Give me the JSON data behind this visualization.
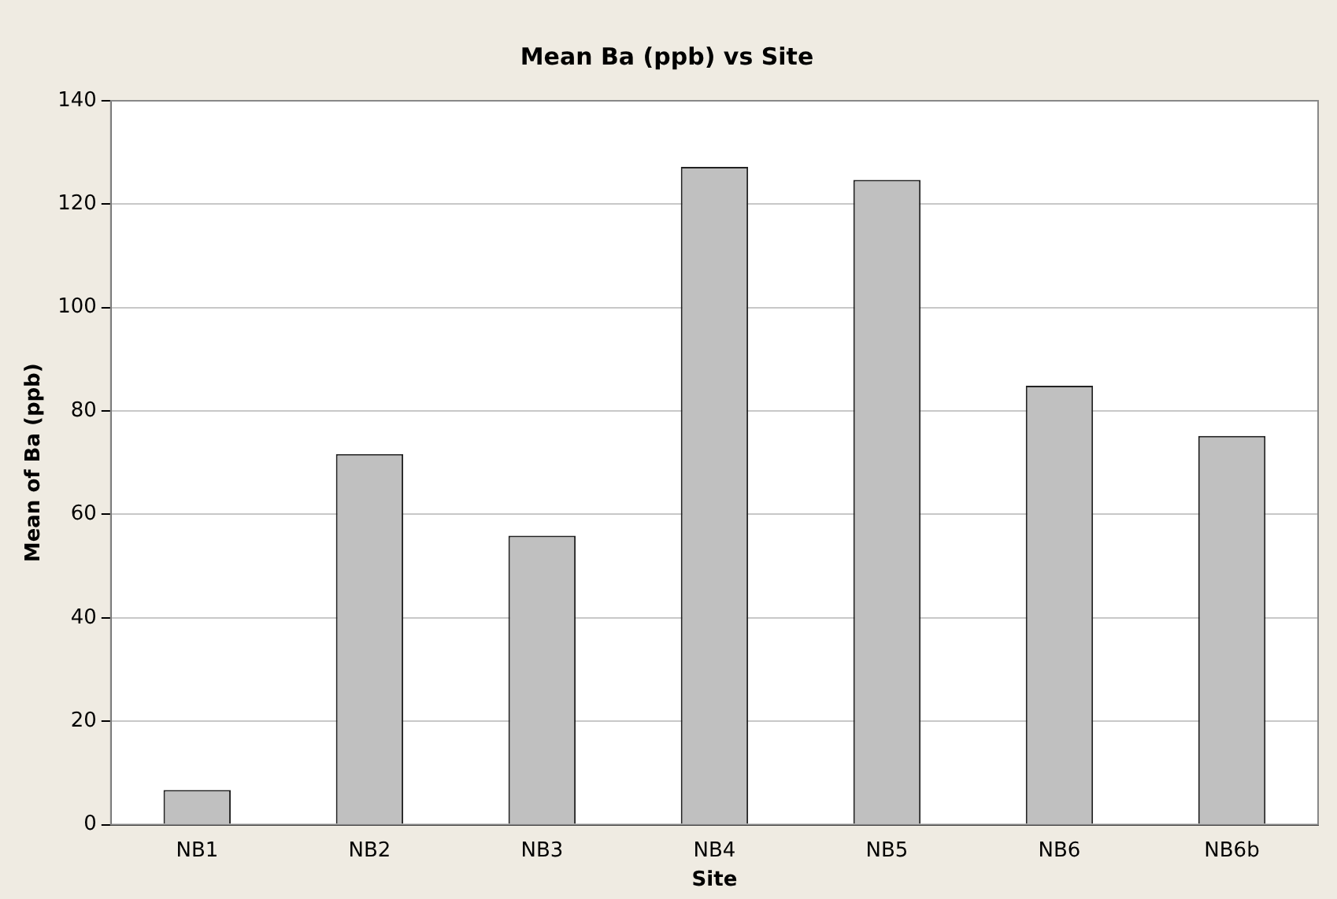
{
  "chart_data": {
    "type": "bar",
    "title": "Mean Ba (ppb) vs Site",
    "xlabel": "Site",
    "ylabel": "Mean of Ba (ppb)",
    "categories": [
      "NB1",
      "NB2",
      "NB3",
      "NB4",
      "NB5",
      "NB6",
      "NB6b"
    ],
    "values": [
      6.7,
      71.7,
      55.9,
      127.2,
      124.7,
      84.9,
      75.2
    ],
    "color": "#c0c0c0",
    "ylim": [
      0,
      140
    ],
    "yticks": [
      0,
      20,
      40,
      60,
      80,
      100,
      120,
      140
    ],
    "grid": "y",
    "legend": false
  }
}
